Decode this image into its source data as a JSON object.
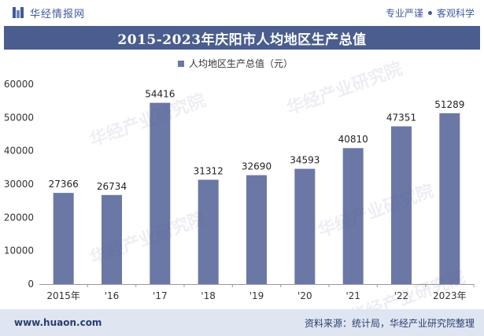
{
  "header": {
    "brand": "华经情报网",
    "tagline_left": "专业严谨",
    "tagline_right": "客观科学"
  },
  "chart_data": {
    "type": "bar",
    "title": "2015-2023年庆阳市人均地区生产总值",
    "legend": "人均地区生产总值（元）",
    "legend_position": "top-center",
    "categories": [
      "2015年",
      "'16",
      "'17",
      "'18",
      "'19",
      "'20",
      "'21",
      "'22",
      "2023年"
    ],
    "series": [
      {
        "name": "人均地区生产总值（元）",
        "values": [
          27366,
          26734,
          54416,
          31312,
          32690,
          34593,
          40810,
          47351,
          51289
        ]
      }
    ],
    "ylim": [
      0,
      60000
    ],
    "yticks": [
      0,
      10000,
      20000,
      30000,
      40000,
      50000,
      60000
    ],
    "xlabel": "",
    "ylabel": "",
    "grid": false,
    "bar_color": "#6b78a6"
  },
  "footer": {
    "site": "www.huaon.com",
    "source": "资料来源：统计局，华经产业研究院整理"
  },
  "watermark": "华经产业研究院"
}
